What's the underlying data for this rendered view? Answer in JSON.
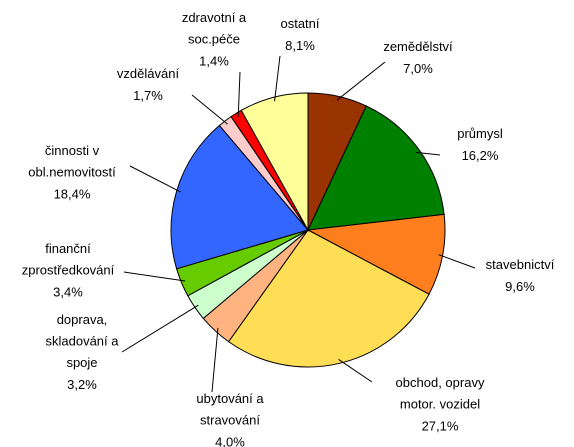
{
  "chart_data": {
    "type": "pie",
    "categories": [
      "zemědělství",
      "průmysl",
      "stavebnictví",
      "obchod, opravy\nmotor. vozidel",
      "ubytování a\nstravování",
      "doprava,\nskladování a\nspoje",
      "finanční\nzprostředkování",
      "činnosti v\nobl.nemovitostí",
      "vzdělávání",
      "zdravotní a\nsoc.péče",
      "ostatní"
    ],
    "values": [
      7.0,
      16.2,
      9.6,
      27.1,
      4.0,
      3.2,
      3.4,
      18.4,
      1.7,
      1.4,
      8.1
    ],
    "value_labels": [
      "7,0%",
      "16,2%",
      "9,6%",
      "27,1%",
      "4,0%",
      "3,2%",
      "3,4%",
      "18,4%",
      "1,7%",
      "1,4%",
      "8,1%"
    ],
    "colors": [
      "#993300",
      "#008000",
      "#ff7f1f",
      "#ffdd55",
      "#ffb380",
      "#ccffcc",
      "#66cc00",
      "#3366ff",
      "#ffcccc",
      "#ff0000",
      "#ffff99"
    ]
  }
}
